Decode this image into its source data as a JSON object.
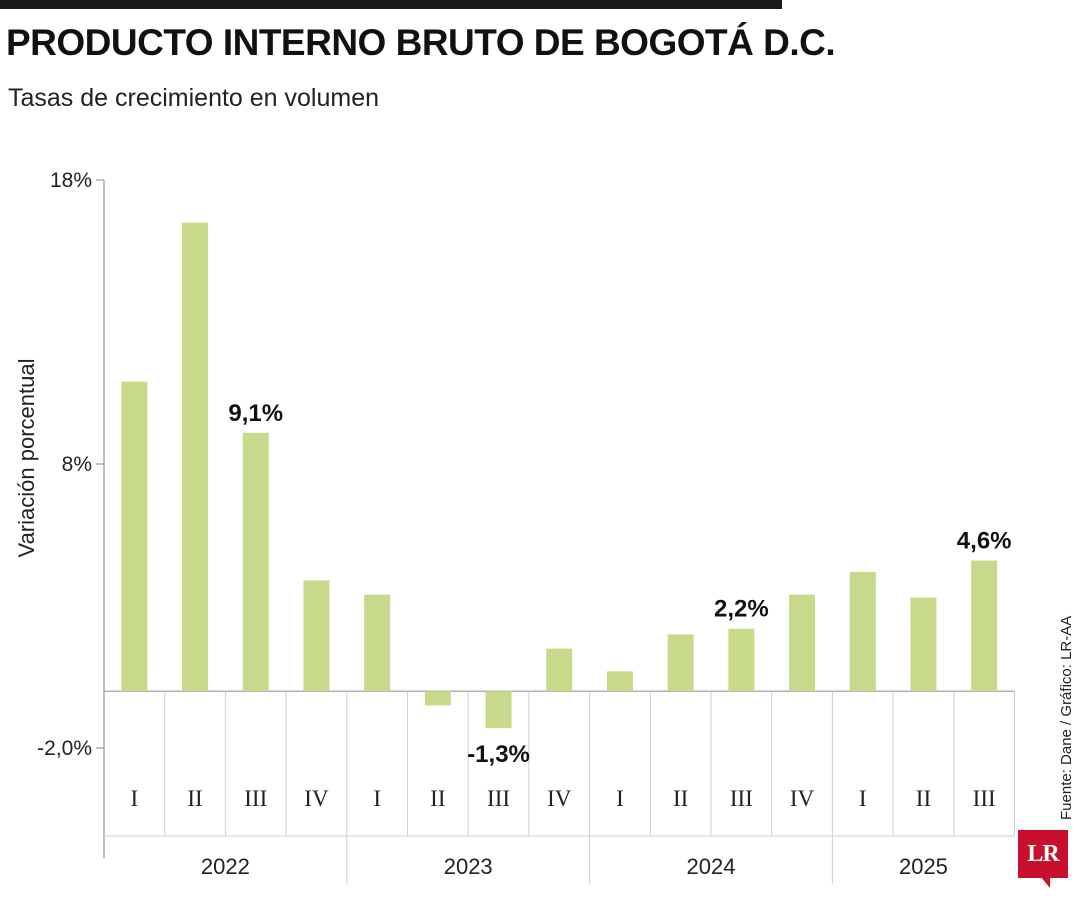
{
  "title": "PRODUCTO INTERNO BRUTO DE BOGOTÁ D.C.",
  "subtitle": "Tasas de crecimiento en volumen",
  "source": "Fuente: Dane / Gráfico: LR-AA",
  "logo_text": "LR",
  "colors": {
    "bar": "#c8d98b",
    "axis": "#999999",
    "logo": "#c8102e"
  },
  "chart_data": {
    "type": "bar",
    "ylabel": "Variación porcentual",
    "ylim": [
      -2.0,
      18
    ],
    "yticks": [
      {
        "value": 18,
        "label": "18%"
      },
      {
        "value": 8,
        "label": "8%"
      },
      {
        "value": -2.0,
        "label": "-2,0%"
      }
    ],
    "years": [
      "2022",
      "2023",
      "2024",
      "2025"
    ],
    "categories": [
      "I",
      "II",
      "III",
      "IV",
      "I",
      "II",
      "III",
      "IV",
      "I",
      "II",
      "III",
      "IV",
      "I",
      "II",
      "III"
    ],
    "category_years": [
      "2022",
      "2022",
      "2022",
      "2022",
      "2023",
      "2023",
      "2023",
      "2023",
      "2024",
      "2024",
      "2024",
      "2024",
      "2025",
      "2025",
      "2025"
    ],
    "values": [
      10.9,
      16.5,
      9.1,
      3.9,
      3.4,
      -0.5,
      -1.3,
      1.5,
      0.7,
      2.0,
      2.2,
      3.4,
      4.2,
      3.3,
      4.6
    ],
    "data_labels": [
      {
        "index": 2,
        "label": "9,1%"
      },
      {
        "index": 6,
        "label": "-1,3%"
      },
      {
        "index": 10,
        "label": "2,2%"
      },
      {
        "index": 14,
        "label": "4,6%"
      }
    ],
    "grid": false,
    "legend": "none"
  }
}
